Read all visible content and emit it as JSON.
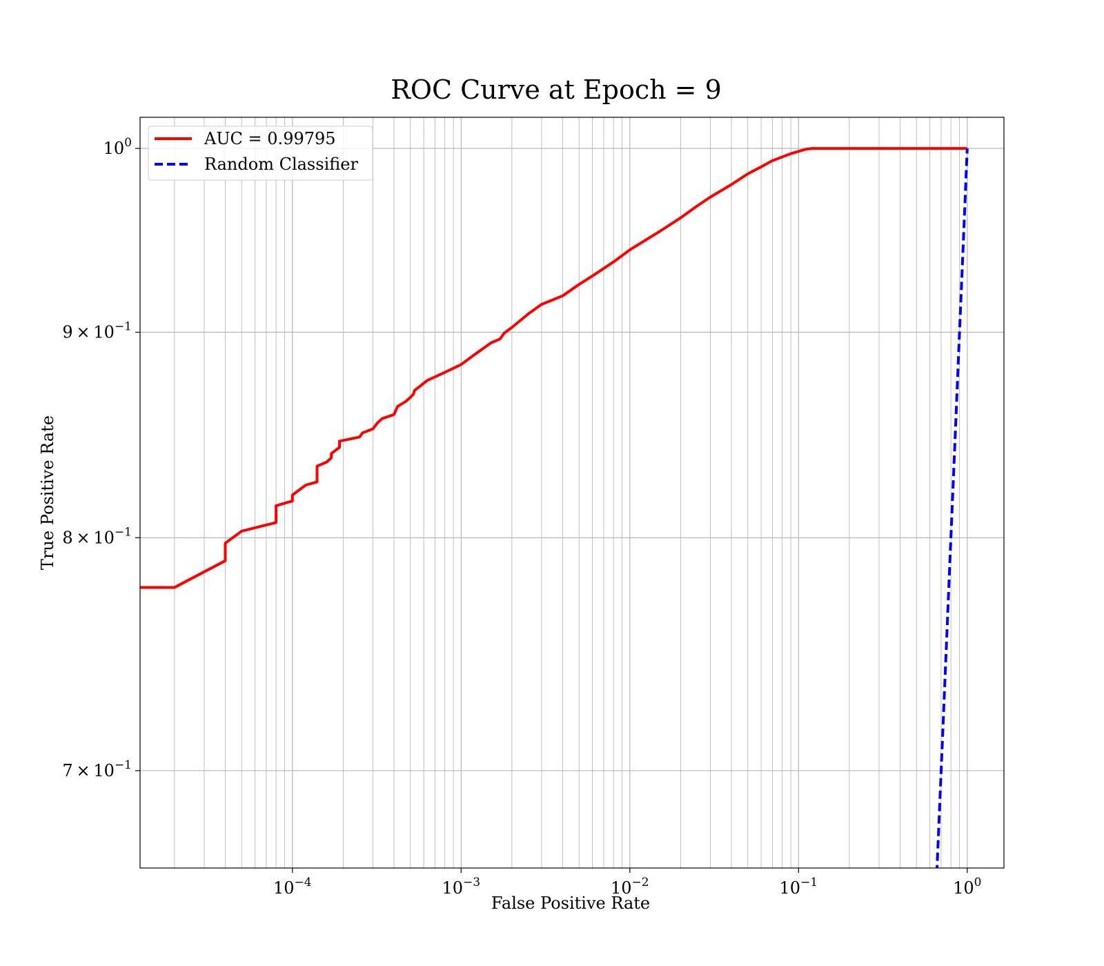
{
  "chart_data": {
    "type": "line",
    "title": "ROC Curve at Epoch = 9",
    "xlabel": "False Positive Rate",
    "ylabel": "True Positive Rate",
    "xscale": "log",
    "yscale": "log",
    "xlim": [
      1.25e-05,
      1.65
    ],
    "ylim": [
      0.662,
      1.018
    ],
    "x_ticks": [
      {
        "value": 0.0001,
        "base": "10",
        "exp": "−4"
      },
      {
        "value": 0.001,
        "base": "10",
        "exp": "−3"
      },
      {
        "value": 0.01,
        "base": "10",
        "exp": "−2"
      },
      {
        "value": 0.1,
        "base": "10",
        "exp": "−1"
      },
      {
        "value": 1,
        "base": "10",
        "exp": "0"
      }
    ],
    "y_ticks": [
      {
        "value": 0.7,
        "mant": "7 × 10",
        "exp": "−1"
      },
      {
        "value": 0.8,
        "mant": "8 × 10",
        "exp": "−1"
      },
      {
        "value": 0.9,
        "mant": "9 × 10",
        "exp": "−1"
      },
      {
        "value": 1.0,
        "mant": "10",
        "exp": "0"
      }
    ],
    "grid": true,
    "legend_position": "top-left",
    "series": [
      {
        "name": "AUC = 0.99795",
        "color": "#ff0000",
        "style": "solid",
        "x": [
          1.25e-05,
          2e-05,
          3e-05,
          4e-05,
          4e-05,
          5e-05,
          8e-05,
          8e-05,
          0.0001,
          0.0001,
          0.00012,
          0.00014,
          0.00014,
          0.00016,
          0.00017,
          0.00017,
          0.00019,
          0.00019,
          0.00025,
          0.00026,
          0.0003,
          0.00032,
          0.00034,
          0.0004,
          0.00042,
          0.00047,
          0.0005,
          0.00052,
          0.00053,
          0.00055,
          0.00063,
          0.0008,
          0.001,
          0.0012,
          0.0015,
          0.0017,
          0.0018,
          0.002,
          0.0025,
          0.003,
          0.004,
          0.005,
          0.006,
          0.008,
          0.01,
          0.015,
          0.02,
          0.025,
          0.03,
          0.04,
          0.05,
          0.06,
          0.07,
          0.09,
          0.11,
          0.12,
          0.2,
          0.4,
          0.7,
          1.0
        ],
        "y": [
          0.7775,
          0.7775,
          0.7845,
          0.7895,
          0.7975,
          0.803,
          0.807,
          0.8148,
          0.817,
          0.8198,
          0.8245,
          0.826,
          0.8335,
          0.8355,
          0.8375,
          0.8395,
          0.8425,
          0.8455,
          0.8475,
          0.8495,
          0.8515,
          0.8545,
          0.8565,
          0.8585,
          0.8625,
          0.865,
          0.867,
          0.8685,
          0.8705,
          0.8715,
          0.8755,
          0.8795,
          0.8835,
          0.8885,
          0.8945,
          0.8965,
          0.8995,
          0.9025,
          0.9095,
          0.9145,
          0.919,
          0.925,
          0.9295,
          0.937,
          0.9435,
          0.9535,
          0.961,
          0.9675,
          0.9725,
          0.9795,
          0.9855,
          0.9895,
          0.993,
          0.997,
          0.9995,
          1.0,
          1.0,
          1.0,
          1.0,
          1.0
        ]
      },
      {
        "name": "Random Classifier",
        "color": "#0000ff",
        "style": "dashed",
        "x": [
          0.66,
          0.7,
          0.75,
          0.8,
          0.85,
          0.9,
          0.95,
          1.0
        ],
        "y": [
          0.66,
          0.7,
          0.75,
          0.8,
          0.85,
          0.9,
          0.95,
          1.0
        ]
      }
    ]
  }
}
